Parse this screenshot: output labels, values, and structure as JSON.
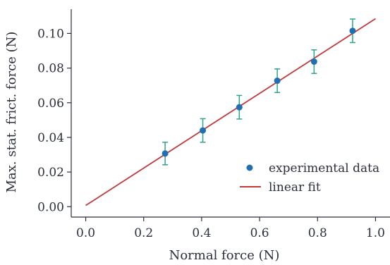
{
  "chart_data": {
    "type": "scatter",
    "xlabel": "Normal force (N)",
    "ylabel": "Max. stat. frict. force (N)",
    "xlim": [
      -0.05,
      1.05
    ],
    "ylim": [
      -0.006,
      0.114
    ],
    "x_ticks": [
      0.0,
      0.2,
      0.4,
      0.6,
      0.8,
      1.0
    ],
    "x_tick_labels": [
      "0.0",
      "0.2",
      "0.4",
      "0.6",
      "0.8",
      "1.0"
    ],
    "y_ticks": [
      0.0,
      0.02,
      0.04,
      0.06,
      0.08,
      0.1
    ],
    "y_tick_labels": [
      "0.00",
      "0.02",
      "0.04",
      "0.06",
      "0.08",
      "0.10"
    ],
    "grid": false,
    "legend_position": "center-right",
    "series": [
      {
        "name": "experimental data",
        "kind": "points_with_errorbars",
        "color": "#1f6fb2",
        "errorbar_color": "#2ea58a",
        "points": [
          {
            "x": 0.274,
            "y": 0.0307,
            "yerr": 0.0065
          },
          {
            "x": 0.404,
            "y": 0.044,
            "yerr": 0.0068
          },
          {
            "x": 0.53,
            "y": 0.0574,
            "yerr": 0.0068
          },
          {
            "x": 0.661,
            "y": 0.0727,
            "yerr": 0.0068
          },
          {
            "x": 0.788,
            "y": 0.0837,
            "yerr": 0.0068
          },
          {
            "x": 0.921,
            "y": 0.1015,
            "yerr": 0.0068
          }
        ]
      },
      {
        "name": "linear fit",
        "kind": "line",
        "color": "#c0393b",
        "x": [
          0.0,
          1.0
        ],
        "y": [
          0.0007,
          0.1085
        ]
      }
    ]
  }
}
